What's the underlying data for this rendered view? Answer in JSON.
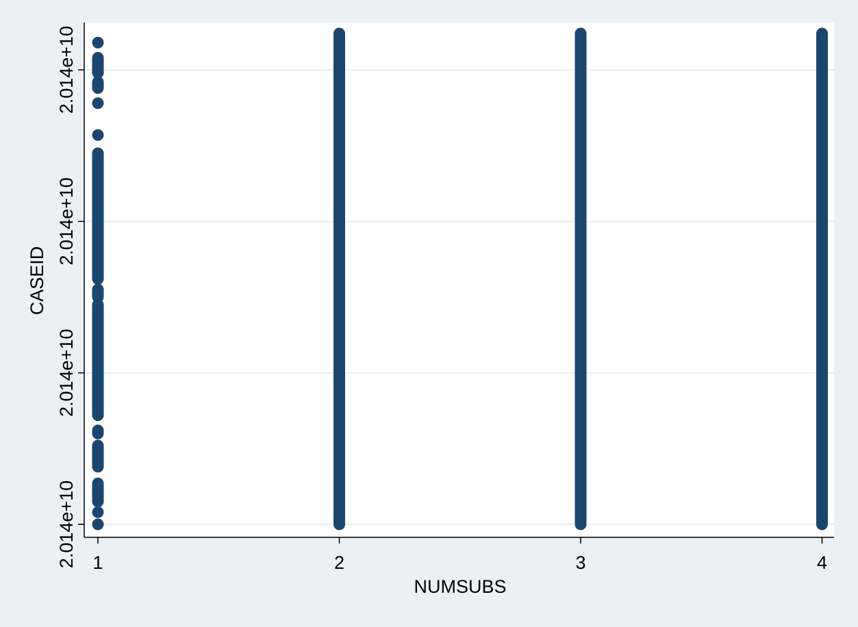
{
  "chart_data": {
    "type": "scatter",
    "title": "",
    "xlabel": "NUMSUBS",
    "ylabel": "CASEID",
    "x_ticks": [
      {
        "value": 1,
        "label": "1"
      },
      {
        "value": 2,
        "label": "2"
      },
      {
        "value": 3,
        "label": "3"
      },
      {
        "value": 4,
        "label": "4"
      }
    ],
    "y_ticks": [
      {
        "value": 0,
        "label": "2.014e+10"
      },
      {
        "value": 1,
        "label": "2.014e+10"
      },
      {
        "value": 2,
        "label": "2.014e+10"
      },
      {
        "value": 3,
        "label": "2.014e+10"
      }
    ],
    "xlim": [
      0.95,
      4.05
    ],
    "ylim": [
      -0.05,
      3.24
    ],
    "grid": "horizontal",
    "legend": "none",
    "colors": {
      "marker": "#1b466e",
      "outer_background": "#eaf0f3",
      "plot_background": "#ffffff",
      "gridline": "#e6edf1"
    },
    "series": [
      {
        "x_value": 1,
        "segments": [
          [
            0.0,
            0.0
          ],
          [
            0.08,
            0.08
          ],
          [
            0.15,
            0.27
          ],
          [
            0.38,
            0.52
          ],
          [
            0.6,
            0.62
          ],
          [
            0.72,
            1.45
          ],
          [
            1.5,
            1.55
          ],
          [
            1.62,
            2.45
          ],
          [
            2.57,
            2.57
          ],
          [
            2.78,
            2.78
          ],
          [
            2.88,
            2.92
          ],
          [
            2.98,
            3.08
          ],
          [
            3.18,
            3.18
          ]
        ]
      },
      {
        "x_value": 2,
        "segments": [
          [
            0.0,
            3.24
          ]
        ]
      },
      {
        "x_value": 3,
        "segments": [
          [
            0.0,
            3.24
          ]
        ]
      },
      {
        "x_value": 4,
        "segments": [
          [
            0.0,
            3.24
          ]
        ]
      }
    ]
  }
}
